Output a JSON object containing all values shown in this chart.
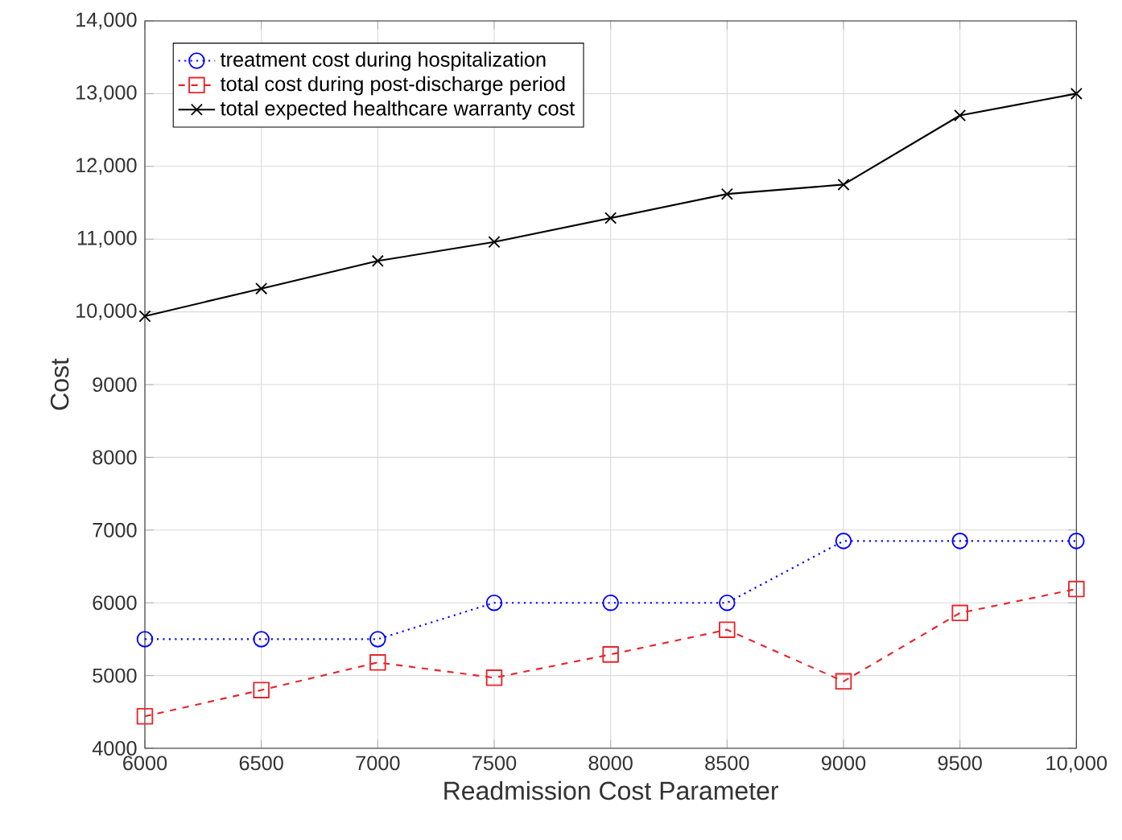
{
  "chart_data": {
    "type": "line",
    "xlabel": "Readmission Cost Parameter",
    "ylabel": "Cost",
    "x": [
      6000,
      6500,
      7000,
      7500,
      8000,
      8500,
      9000,
      9500,
      10000
    ],
    "series": [
      {
        "name": "treatment cost during hospitalization",
        "color": "#0000ff",
        "marker": "circle",
        "line_style": "dotted",
        "values": [
          5500,
          5500,
          5500,
          6000,
          6000,
          6000,
          6850,
          6850,
          6850
        ]
      },
      {
        "name": "total cost during post-discharge period",
        "color": "#e8242a",
        "marker": "square",
        "line_style": "dashed",
        "values": [
          4440,
          4800,
          5180,
          4970,
          5290,
          5630,
          4920,
          5860,
          6190
        ]
      },
      {
        "name": "total expected healthcare warranty cost",
        "color": "#000000",
        "marker": "cross",
        "line_style": "solid",
        "values": [
          9940,
          10320,
          10700,
          10960,
          11290,
          11620,
          11750,
          12700,
          13000
        ]
      }
    ],
    "xlim": [
      6000,
      10000
    ],
    "ylim": [
      4000,
      14000
    ],
    "xticks": [
      6000,
      6500,
      7000,
      7500,
      8000,
      8500,
      9000,
      9500,
      {
        "value": 10000,
        "label": "10,000"
      }
    ],
    "yticks": [
      4000,
      5000,
      6000,
      7000,
      8000,
      9000,
      {
        "value": 10000,
        "label": "10,000"
      },
      {
        "value": 11000,
        "label": "11,000"
      },
      {
        "value": 12000,
        "label": "12,000"
      },
      {
        "value": 13000,
        "label": "13,000"
      },
      {
        "value": 14000,
        "label": "14,000"
      }
    ],
    "grid": true,
    "legend": "top left"
  }
}
